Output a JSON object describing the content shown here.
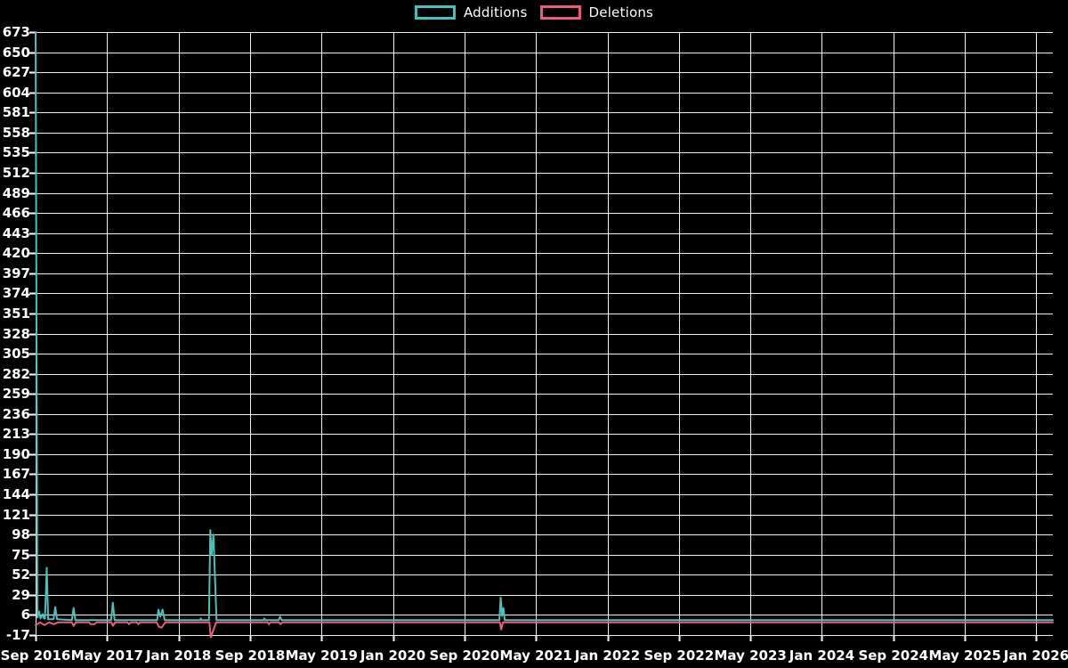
{
  "page": {
    "background_color": "#000000",
    "text_color": "#ffffff",
    "grid_color": "#f2f2f2"
  },
  "legend": {
    "position": "top-center",
    "items": [
      {
        "label": "Additions",
        "color": "#46c2bd"
      },
      {
        "label": "Deletions",
        "color": "#ec5e76"
      }
    ]
  },
  "chart_data": {
    "type": "line",
    "legend_position": "top-center",
    "background": "#000000",
    "grid": true,
    "x_axis": {
      "unit": "date (weekly points), months offset from Sep 2016",
      "tick_interval_months": 8,
      "range_months": [
        0,
        113.85
      ],
      "tick_labels": [
        "Sep 2016",
        "May 2017",
        "Jan 2018",
        "Sep 2018",
        "May 2019",
        "Jan 2020",
        "Sep 2020",
        "May 2021",
        "Jan 2022",
        "Sep 2022",
        "May 2023",
        "Jan 2024",
        "Sep 2024",
        "May 2025",
        "Jan 2026"
      ]
    },
    "y_axis": {
      "min": -17,
      "max": 673,
      "tick_step": 23,
      "ticks_top_to_bottom": [
        673,
        650,
        627,
        604,
        581,
        558,
        535,
        512,
        489,
        466,
        443,
        420,
        397,
        374,
        351,
        328,
        305,
        282,
        259,
        236,
        213,
        190,
        167,
        144,
        121,
        98,
        75,
        52,
        29,
        6,
        -17
      ]
    },
    "series": [
      {
        "name": "Additions",
        "color": "#46c2bd",
        "points": [
          [
            0,
            673
          ],
          [
            0.2,
            3
          ],
          [
            0.4,
            10
          ],
          [
            0.55,
            2
          ],
          [
            0.8,
            7
          ],
          [
            0.95,
            2
          ],
          [
            1.05,
            2
          ],
          [
            1.15,
            30
          ],
          [
            1.25,
            60
          ],
          [
            1.4,
            1
          ],
          [
            2.0,
            1
          ],
          [
            2.2,
            15
          ],
          [
            2.4,
            1
          ],
          [
            4.05,
            0
          ],
          [
            4.25,
            14
          ],
          [
            4.45,
            0
          ],
          [
            8.45,
            0
          ],
          [
            8.65,
            20
          ],
          [
            8.85,
            0
          ],
          [
            13.6,
            0
          ],
          [
            13.75,
            12
          ],
          [
            13.95,
            4
          ],
          [
            14.2,
            12
          ],
          [
            14.45,
            0
          ],
          [
            18.4,
            0
          ],
          [
            18.5,
            2
          ],
          [
            18.6,
            0
          ],
          [
            19.4,
            0
          ],
          [
            19.55,
            103
          ],
          [
            19.7,
            75
          ],
          [
            19.9,
            98
          ],
          [
            20.25,
            0
          ],
          [
            25.5,
            0
          ],
          [
            25.6,
            2
          ],
          [
            25.7,
            0
          ],
          [
            27.2,
            0
          ],
          [
            27.35,
            4
          ],
          [
            27.55,
            0
          ],
          [
            51.9,
            0
          ],
          [
            52.05,
            26
          ],
          [
            52.2,
            5
          ],
          [
            52.35,
            14
          ],
          [
            52.5,
            0
          ],
          [
            113.85,
            0
          ]
        ]
      },
      {
        "name": "Deletions",
        "color": "#ec5e76",
        "points": [
          [
            0,
            -3
          ],
          [
            0.5,
            0
          ],
          [
            1.0,
            -3
          ],
          [
            1.5,
            0
          ],
          [
            2.05,
            -2
          ],
          [
            2.5,
            0
          ],
          [
            4.05,
            0
          ],
          [
            4.25,
            -4
          ],
          [
            4.5,
            0
          ],
          [
            6.0,
            0
          ],
          [
            6.15,
            -2
          ],
          [
            6.6,
            -2
          ],
          [
            6.8,
            0
          ],
          [
            8.5,
            0
          ],
          [
            8.65,
            -4
          ],
          [
            8.9,
            0
          ],
          [
            10.3,
            0
          ],
          [
            10.45,
            -2
          ],
          [
            10.65,
            0
          ],
          [
            11.35,
            0
          ],
          [
            11.5,
            -2
          ],
          [
            11.65,
            0
          ],
          [
            13.55,
            0
          ],
          [
            13.8,
            -5
          ],
          [
            14.1,
            -6
          ],
          [
            14.5,
            0
          ],
          [
            19.45,
            0
          ],
          [
            19.6,
            -17
          ],
          [
            19.85,
            -10
          ],
          [
            20.2,
            0
          ],
          [
            26.0,
            0
          ],
          [
            26.1,
            -2
          ],
          [
            26.3,
            0
          ],
          [
            27.25,
            0
          ],
          [
            27.4,
            -2
          ],
          [
            27.6,
            0
          ],
          [
            51.95,
            0
          ],
          [
            52.1,
            -8
          ],
          [
            52.3,
            0
          ],
          [
            113.85,
            0
          ]
        ]
      }
    ]
  }
}
